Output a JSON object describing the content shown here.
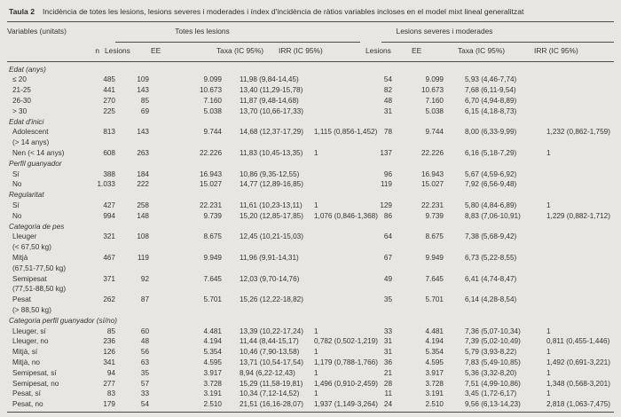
{
  "caption": {
    "label": "Taula 2",
    "text": "Incidència de totes les lesions, lesions severes i moderades i índex d'incidència de ràtios variables incloses en el model mixt lineal generalitzat"
  },
  "header": {
    "variables": "Variables (unitats)",
    "group1": "Totes les lesions",
    "group2": "Lesions severes i moderades",
    "cols": [
      "n",
      "Lesions",
      "EE",
      "Taxa (IC 95%)",
      "IRR (IC 95%)",
      "Lesions",
      "EE",
      "Taxa (IC 95%)",
      "IRR (IC 95%)"
    ]
  },
  "colors": {
    "background": "#e7e6e1",
    "rule": "#4a4a4a",
    "text": "#333333"
  },
  "sections": [
    {
      "title": "Edat (anys)",
      "rows": [
        {
          "label": "≤ 20",
          "sub": "",
          "cells": [
            "485",
            "109",
            "9.099",
            "11,98 (9,84-14,45)",
            "",
            "54",
            "9.099",
            "5,93 (4,46-7,74)",
            ""
          ]
        },
        {
          "label": "21-25",
          "sub": "",
          "cells": [
            "441",
            "143",
            "10.673",
            "13,40 (11,29-15,78)",
            "",
            "82",
            "10.673",
            "7,68 (6,11-9,54)",
            ""
          ]
        },
        {
          "label": "26-30",
          "sub": "",
          "cells": [
            "270",
            "85",
            "7.160",
            "11,87 (9,48-14,68)",
            "",
            "48",
            "7.160",
            "6,70 (4,94-8,89)",
            ""
          ]
        },
        {
          "label": "> 30",
          "sub": "",
          "cells": [
            "225",
            "69",
            "5.038",
            "13,70 (10,66-17,33)",
            "",
            "31",
            "5.038",
            "6,15 (4,18-8,73)",
            ""
          ]
        }
      ]
    },
    {
      "title": "Edat d'inici",
      "rows": [
        {
          "label": "Adolescent",
          "sub": "(> 14 anys)",
          "cells": [
            "813",
            "143",
            "9.744",
            "14,68 (12,37-17,29)",
            "1,115 (0,856-1,452)",
            "78",
            "9.744",
            "8,00 (6,33-9,99)",
            "1,232 (0,862-1,759)"
          ]
        },
        {
          "label": "Nen (< 14 anys)",
          "sub": "",
          "cells": [
            "608",
            "263",
            "22.226",
            "11,83 (10,45-13,35)",
            "1",
            "137",
            "22.226",
            "6,16 (5,18-7,29)",
            "1"
          ]
        }
      ]
    },
    {
      "title": "Perfil guanyador",
      "rows": [
        {
          "label": "Sí",
          "sub": "",
          "cells": [
            "388",
            "184",
            "16.943",
            "10,86 (9,35-12,55)",
            "",
            "96",
            "16.943",
            "5,67 (4,59-6,92)",
            ""
          ]
        },
        {
          "label": "No",
          "sub": "",
          "cells": [
            "1.033",
            "222",
            "15.027",
            "14,77 (12,89-16,85)",
            "",
            "119",
            "15.027",
            "7,92 (6,56-9,48)",
            ""
          ]
        }
      ]
    },
    {
      "title": "Regularitat",
      "rows": [
        {
          "label": "Sí",
          "sub": "",
          "cells": [
            "427",
            "258",
            "22.231",
            "11,61 (10,23-13,11)",
            "1",
            "129",
            "22.231",
            "5,80 (4,84-6,89)",
            "1"
          ]
        },
        {
          "label": "No",
          "sub": "",
          "cells": [
            "994",
            "148",
            "9.739",
            "15,20 (12,85-17,85)",
            "1,076 (0,846-1,368)",
            "86",
            "9.739",
            "8,83 (7,06-10,91)",
            "1,229 (0,882-1,712)"
          ]
        }
      ]
    },
    {
      "title": "Categoria de pes",
      "rows": [
        {
          "label": "Lleuger",
          "sub": "(< 67,50 kg)",
          "cells": [
            "321",
            "108",
            "8.675",
            "12,45 (10,21-15,03)",
            "",
            "64",
            "8.675",
            "7,38 (5,68-9,42)",
            ""
          ]
        },
        {
          "label": "Mitjà",
          "sub": "(67,51-77,50 kg)",
          "cells": [
            "467",
            "119",
            "9.949",
            "11,96 (9,91-14,31)",
            "",
            "67",
            "9.949",
            "6,73 (5,22-8,55)",
            ""
          ]
        },
        {
          "label": "Semipesat",
          "sub": "(77,51-88,50 kg)",
          "cells": [
            "371",
            "92",
            "7.645",
            "12,03 (9,70-14,76)",
            "",
            "49",
            "7.645",
            "6,41 (4,74-8,47)",
            ""
          ]
        },
        {
          "label": "Pesat",
          "sub": "(> 88,50 kg)",
          "cells": [
            "262",
            "87",
            "5.701",
            "15,26 (12,22-18,82)",
            "",
            "35",
            "5.701",
            "6,14 (4,28-8,54)",
            ""
          ]
        }
      ]
    },
    {
      "title": "Categoria perfil guanyador (sí/no)",
      "rows": [
        {
          "label": "Lleuger, sí",
          "sub": "",
          "cells": [
            "85",
            "60",
            "4.481",
            "13,39 (10,22-17,24)",
            "1",
            "33",
            "4.481",
            "7,36 (5,07-10,34)",
            "1"
          ]
        },
        {
          "label": "Lleuger, no",
          "sub": "",
          "cells": [
            "236",
            "48",
            "4.194",
            "11,44 (8,44-15,17)",
            "0,782 (0,502-1,219)",
            "31",
            "4.194",
            "7,39 (5,02-10,49)",
            "0,811 (0,455-1,446)"
          ]
        },
        {
          "label": "Mitjà, sí",
          "sub": "",
          "cells": [
            "126",
            "56",
            "5.354",
            "10,46 (7,90-13,58)",
            "1",
            "31",
            "5.354",
            "5,79 (3,93-8,22)",
            "1"
          ]
        },
        {
          "label": "Mitjà, no",
          "sub": "",
          "cells": [
            "341",
            "63",
            "4.595",
            "13,71 (10,54-17,54)",
            "1,179 (0,788-1,766)",
            "36",
            "4.595",
            "7,83 (5,49-10,85)",
            "1,492 (0,691-3,221)"
          ]
        },
        {
          "label": "Semipesat, sí",
          "sub": "",
          "cells": [
            "94",
            "35",
            "3.917",
            "8,94 (6,22-12,43)",
            "1",
            "21",
            "3.917",
            "5,36 (3,32-8,20)",
            "1"
          ]
        },
        {
          "label": "Semipesat, no",
          "sub": "",
          "cells": [
            "277",
            "57",
            "3.728",
            "15,29 (11,58-19,81)",
            "1,496 (0,910-2,459)",
            "28",
            "3.728",
            "7,51 (4,99-10,86)",
            "1,348 (0,568-3,201)"
          ]
        },
        {
          "label": "Pesat, sí",
          "sub": "",
          "cells": [
            "83",
            "33",
            "3.191",
            "10,34 (7,12-14,52)",
            "1",
            "11",
            "3.191",
            "3,45 (1,72-6,17)",
            "1"
          ]
        },
        {
          "label": "Pesat, no",
          "sub": "",
          "cells": [
            "179",
            "54",
            "2.510",
            "21,51 (16,16-28,07)",
            "1,937 (1,149-3,264)",
            "24",
            "2.510",
            "9,56 (6,13-14,23)",
            "2,818 (1,063-7,475)"
          ]
        }
      ]
    }
  ]
}
